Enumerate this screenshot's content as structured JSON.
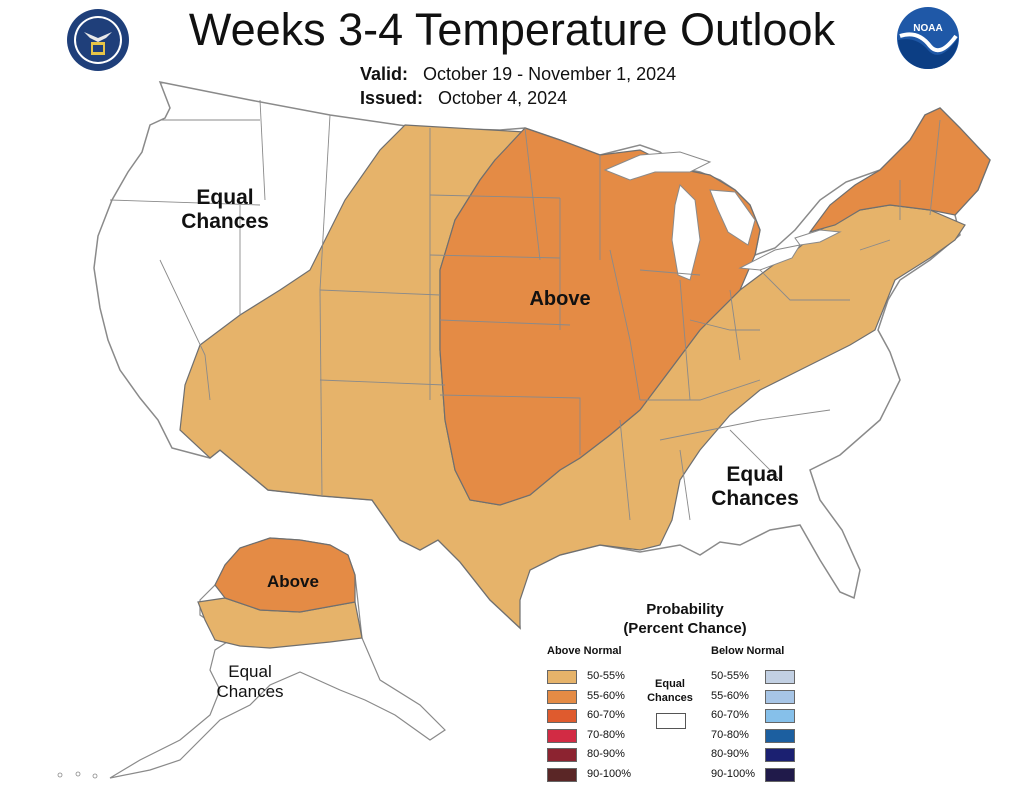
{
  "header": {
    "title": "Weeks 3-4 Temperature Outlook",
    "valid_label": "Valid:",
    "valid_value": "October 19 - November 1, 2024",
    "issued_label": "Issued:",
    "issued_value": "October 4, 2024"
  },
  "logos": {
    "left": "department-of-commerce-seal-icon",
    "right": "noaa-logo-icon",
    "noaa_text": "NOAA"
  },
  "map_labels": {
    "west_equal": "Equal Chances",
    "central_above": "Above",
    "southeast_equal": "Equal Chances",
    "alaska_above": "Above",
    "alaska_equal": "Equal Chances"
  },
  "regions": [
    {
      "name": "western-and-southern-us",
      "category": "Above Normal",
      "probability": "50-55%"
    },
    {
      "name": "northeast-us",
      "category": "Above Normal",
      "probability": "50-55%"
    },
    {
      "name": "central-us",
      "category": "Above Normal",
      "probability": "55-60%"
    },
    {
      "name": "new-england-and-upper-midwest",
      "category": "Above Normal",
      "probability": "55-60%"
    },
    {
      "name": "northern-alaska",
      "category": "Above Normal",
      "probability": "55-60%"
    },
    {
      "name": "central-alaska-band",
      "category": "Above Normal",
      "probability": "50-55%"
    }
  ],
  "colors": {
    "above_50_55": "#e6b36a",
    "above_55_60": "#e48b45",
    "above_60_70": "#df5b2e",
    "above_70_80": "#d22b44",
    "above_80_90": "#8c2330",
    "above_90_100": "#5a2626",
    "below_50_55": "#c2d0e3",
    "below_55_60": "#a7c5e6",
    "below_60_70": "#86c0ea",
    "below_70_80": "#1c5fa0",
    "below_80_90": "#1b2071",
    "below_90_100": "#201a4a",
    "state_border": "#8a8a8a",
    "region_border": "#6f6f6f"
  },
  "legend": {
    "title_line1": "Probability",
    "title_line2": "(Percent Chance)",
    "above_header": "Above Normal",
    "below_header": "Below Normal",
    "equal_chances": "Equal Chances",
    "above": [
      "50-55%",
      "55-60%",
      "60-70%",
      "70-80%",
      "80-90%",
      "90-100%"
    ],
    "below": [
      "50-55%",
      "55-60%",
      "60-70%",
      "70-80%",
      "80-90%",
      "90-100%"
    ]
  }
}
